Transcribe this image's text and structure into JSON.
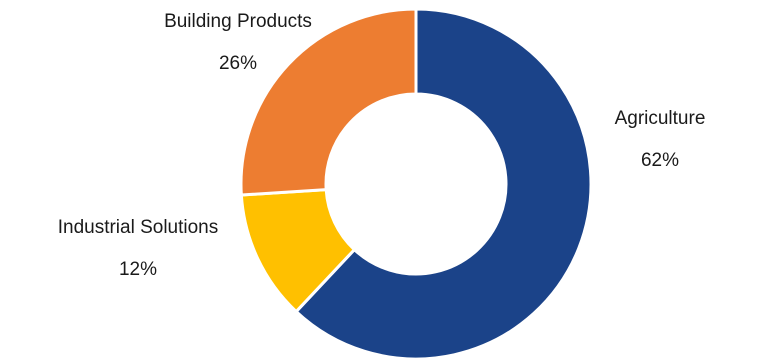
{
  "chart_data": {
    "type": "pie",
    "subtype": "donut",
    "slices": [
      {
        "label": "Agriculture",
        "value": 62,
        "value_label": "62%",
        "color": "#1B4389"
      },
      {
        "label": "Industrial Solutions",
        "value": 12,
        "value_label": "12%",
        "color": "#FFC000"
      },
      {
        "label": "Building Products",
        "value": 26,
        "value_label": "26%",
        "color": "#ED7D31"
      }
    ],
    "start_angle_deg": 0,
    "direction": "clockwise",
    "legend": "none",
    "separator_color": "#ffffff"
  }
}
